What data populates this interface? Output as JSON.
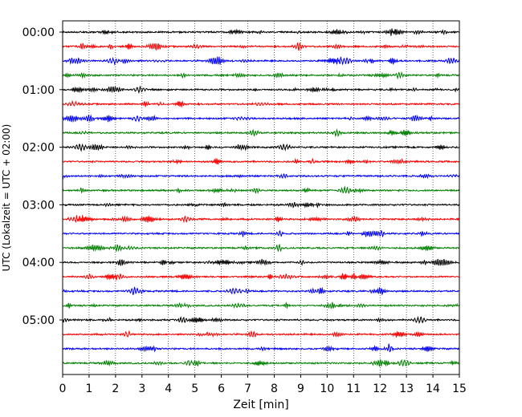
{
  "chart_data": {
    "type": "line",
    "xlabel": "Zeit  [min]",
    "ylabel": "UTC (Lokalzeit = UTC + 02:00)",
    "xlim": [
      0,
      15
    ],
    "x_ticks": [
      0,
      1,
      2,
      3,
      4,
      5,
      6,
      7,
      8,
      9,
      10,
      11,
      12,
      13,
      14,
      15
    ],
    "x_tick_labels": [
      "0",
      "1",
      "2",
      "3",
      "4",
      "5",
      "6",
      "7",
      "8",
      "9",
      "10",
      "11",
      "12",
      "13",
      "14",
      "15"
    ],
    "y_tick_labels": [
      "00:00",
      "01:00",
      "02:00",
      "03:00",
      "04:00",
      "05:00"
    ],
    "row_minutes": 15,
    "rows_per_hour": 4,
    "grid": "vertical dotted",
    "colors": [
      "#000000",
      "#ff0000",
      "#0000ff",
      "#008000"
    ],
    "trace_starts": [
      "00:00",
      "00:15",
      "00:30",
      "00:45",
      "01:00",
      "01:15",
      "01:30",
      "01:45",
      "02:00",
      "02:15",
      "02:30",
      "02:45",
      "03:00",
      "03:15",
      "03:30",
      "03:45",
      "04:00",
      "04:15",
      "04:30",
      "04:45",
      "05:00",
      "05:15",
      "05:30",
      "05:45"
    ]
  }
}
